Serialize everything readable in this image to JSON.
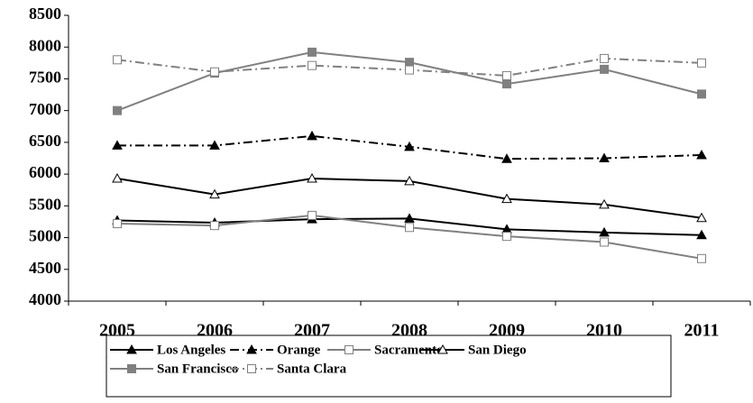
{
  "chart_data": {
    "type": "line",
    "categories": [
      "2005",
      "2006",
      "2007",
      "2008",
      "2009",
      "2010",
      "2011"
    ],
    "ylim": [
      4000,
      8500
    ],
    "yticks": [
      4000,
      4500,
      5000,
      5500,
      6000,
      6500,
      7000,
      7500,
      8000,
      8500
    ],
    "grid": false,
    "legend": "bottom",
    "series": [
      {
        "name": "Los Angeles",
        "color": "#000000",
        "dash": "solid",
        "marker": "triangle",
        "filled": true,
        "values": [
          5270,
          5235,
          5290,
          5300,
          5130,
          5080,
          5040
        ]
      },
      {
        "name": "Orange",
        "color": "#000000",
        "dash": "dashdot",
        "marker": "triangle",
        "filled": true,
        "values": [
          6450,
          6450,
          6600,
          6430,
          6240,
          6250,
          6300
        ]
      },
      {
        "name": "Sacramento",
        "color": "#808080",
        "dash": "solid",
        "marker": "square",
        "filled": false,
        "values": [
          5220,
          5190,
          5350,
          5160,
          5020,
          4930,
          4670
        ]
      },
      {
        "name": "San Diego",
        "color": "#000000",
        "dash": "solid",
        "marker": "triangle",
        "filled": false,
        "values": [
          5930,
          5680,
          5930,
          5890,
          5610,
          5520,
          5310
        ]
      },
      {
        "name": "San Francisco",
        "color": "#808080",
        "dash": "solid",
        "marker": "square",
        "filled": true,
        "values": [
          7000,
          7590,
          7920,
          7760,
          7420,
          7650,
          7260
        ]
      },
      {
        "name": "Santa Clara",
        "color": "#808080",
        "dash": "dashdot",
        "marker": "square",
        "filled": false,
        "values": [
          7800,
          7610,
          7710,
          7640,
          7550,
          7820,
          7750
        ]
      }
    ]
  }
}
